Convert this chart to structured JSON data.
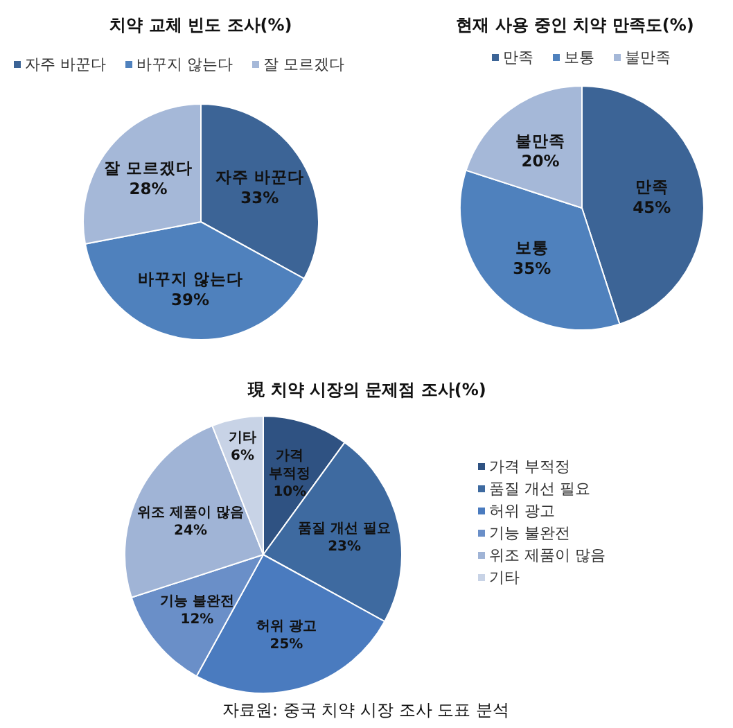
{
  "chart_data": [
    {
      "type": "pie",
      "title": "치약 교체 빈도 조사(%)",
      "categories": [
        "자주 바꾼다",
        "바꾸지 않는다",
        "잘 모르겠다"
      ],
      "values": [
        33,
        39,
        28
      ],
      "value_labels": [
        "33%",
        "39%",
        "28%"
      ],
      "colors": [
        "#3c6496",
        "#4f81bd",
        "#a5b8d8"
      ],
      "legend": "top"
    },
    {
      "type": "pie",
      "title": "현재 사용 중인 치약 만족도(%)",
      "categories": [
        "만족",
        "보통",
        "불만족"
      ],
      "values": [
        45,
        35,
        20
      ],
      "value_labels": [
        "45%",
        "35%",
        "20%"
      ],
      "colors": [
        "#3c6496",
        "#4f81bd",
        "#a5b8d8"
      ],
      "legend": "top"
    },
    {
      "type": "pie",
      "title": "現 치약 시장의 문제점 조사(%)",
      "categories": [
        "가격 부적정",
        "품질 개선 필요",
        "허위 광고",
        "기능 불완전",
        "위조 제품이 많음",
        "기타"
      ],
      "values": [
        10,
        23,
        25,
        12,
        24,
        6
      ],
      "value_labels": [
        "10%",
        "23%",
        "25%",
        "12%",
        "24%",
        "6%"
      ],
      "colors": [
        "#2f5282",
        "#3e6aa0",
        "#4a7bbf",
        "#6a8fc8",
        "#a0b4d6",
        "#c8d3e6"
      ],
      "legend": "right",
      "annotations": [
        "자료원: 중국 치약 시장 조사 도표 분석"
      ]
    }
  ]
}
